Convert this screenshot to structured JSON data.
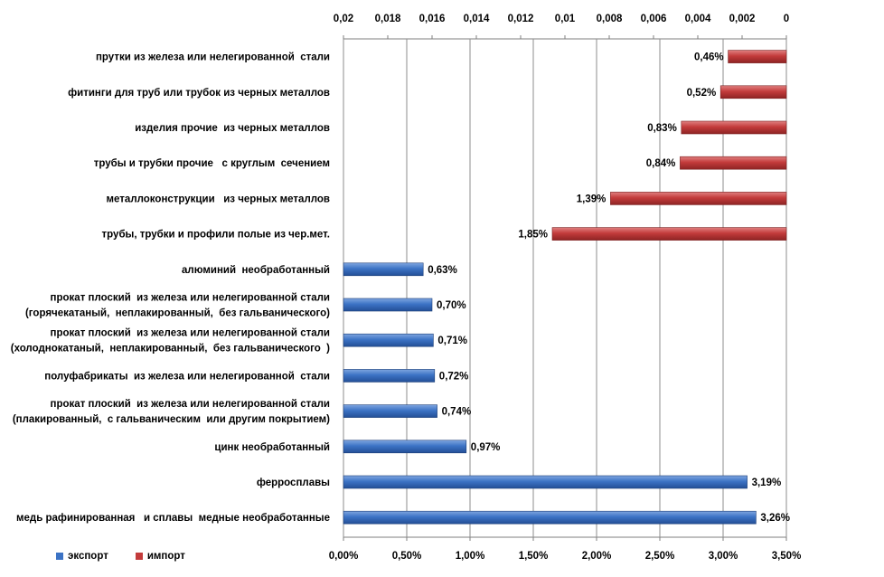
{
  "chart_data": {
    "type": "bar",
    "orientation": "horizontal",
    "legend": [
      {
        "name": "экспорт",
        "color": "#3c73c5"
      },
      {
        "name": "импорт",
        "color": "#c33b3b"
      }
    ],
    "legend_position": "bottom-left",
    "grid": true,
    "bottom_axis": {
      "range": [
        0,
        3.5
      ],
      "ticks": [
        "0,00%",
        "0,50%",
        "1,00%",
        "1,50%",
        "2,00%",
        "2,50%",
        "3,00%",
        "3,50%"
      ],
      "tick_values": [
        0,
        0.5,
        1,
        1.5,
        2,
        2.5,
        3,
        3.5
      ]
    },
    "top_axis": {
      "range": [
        0,
        0.02
      ],
      "reversed": true,
      "ticks": [
        "0,02",
        "0,018",
        "0,016",
        "0,014",
        "0,012",
        "0,01",
        "0,008",
        "0,006",
        "0,004",
        "0,002",
        "0"
      ],
      "tick_values": [
        0.02,
        0.018,
        0.016,
        0.014,
        0.012,
        0.01,
        0.008,
        0.006,
        0.004,
        0.002,
        0
      ]
    },
    "rows": [
      {
        "lines": [
          "прутки из железа или нелегированной  стали"
        ],
        "series": "импорт",
        "value": 0.46,
        "label": "0,46%"
      },
      {
        "lines": [
          "фитинги для труб или трубок из черных металлов"
        ],
        "series": "импорт",
        "value": 0.52,
        "label": "0,52%"
      },
      {
        "lines": [
          "изделия прочие  из черных металлов"
        ],
        "series": "импорт",
        "value": 0.83,
        "label": "0,83%"
      },
      {
        "lines": [
          "трубы и трубки прочие   с круглым  сечением"
        ],
        "series": "импорт",
        "value": 0.84,
        "label": "0,84%"
      },
      {
        "lines": [
          "металлоконструкции   из черных металлов"
        ],
        "series": "импорт",
        "value": 1.39,
        "label": "1,39%"
      },
      {
        "lines": [
          "трубы, трубки и профили полые из чер.мет."
        ],
        "series": "импорт",
        "value": 1.85,
        "label": "1,85%"
      },
      {
        "lines": [
          "алюминий  необработанный"
        ],
        "series": "экспорт",
        "value": 0.63,
        "label": "0,63%"
      },
      {
        "lines": [
          "прокат плоский  из железа или нелегированной стали",
          "(горячекатаный,  неплакированный,  без гальванического)"
        ],
        "series": "экспорт",
        "value": 0.7,
        "label": "0,70%"
      },
      {
        "lines": [
          "прокат плоский  из железа или нелегированной стали",
          "(холоднокатаный,  неплакированный,  без гальванического  )"
        ],
        "series": "экспорт",
        "value": 0.71,
        "label": "0,71%"
      },
      {
        "lines": [
          "полуфабрикаты  из железа или нелегированной  стали"
        ],
        "series": "экспорт",
        "value": 0.72,
        "label": "0,72%"
      },
      {
        "lines": [
          "прокат плоский  из железа или нелегированной стали",
          "(плакированный,  с гальваническим  или другим покрытием)"
        ],
        "series": "экспорт",
        "value": 0.74,
        "label": "0,74%"
      },
      {
        "lines": [
          "цинк необработанный"
        ],
        "series": "экспорт",
        "value": 0.97,
        "label": "0,97%"
      },
      {
        "lines": [
          "ферросплавы"
        ],
        "series": "экспорт",
        "value": 3.19,
        "label": "3,19%"
      },
      {
        "lines": [
          "медь рафинированная   и сплавы  медные необработанные"
        ],
        "series": "экспорт",
        "value": 3.26,
        "label": "3,26%"
      }
    ]
  }
}
